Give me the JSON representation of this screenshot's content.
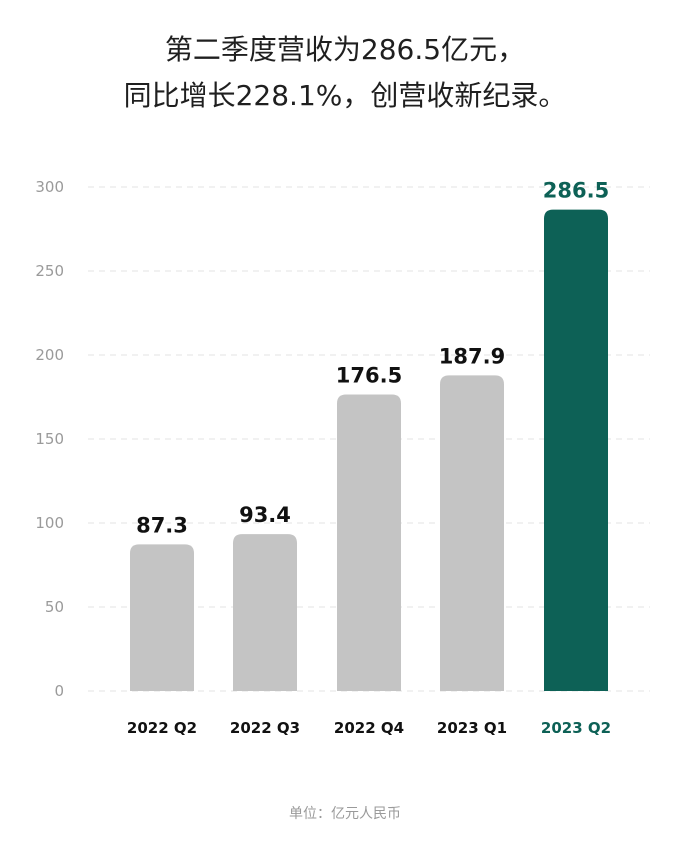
{
  "title_lines": [
    "第二季度营收为286.5亿元，",
    "同比增长228.1%，创营收新纪录。"
  ],
  "unit_note": "单位：亿元人民币",
  "colors": {
    "bar_default": "#c4c4c4",
    "bar_highlight": "#0d6156",
    "label_default": "#111111",
    "label_highlight": "#0d6156",
    "grid": "#e3e3e3",
    "tick": "#9a9a9a"
  },
  "chart_data": {
    "type": "bar",
    "categories": [
      "2022 Q2",
      "2022 Q3",
      "2022 Q4",
      "2023 Q1",
      "2023 Q2"
    ],
    "values": [
      87.3,
      93.4,
      176.5,
      187.9,
      286.5
    ],
    "value_labels": [
      "87.3",
      "93.4",
      "176.5",
      "187.9",
      "286.5"
    ],
    "highlight_index": 4,
    "ylim": [
      0,
      300
    ],
    "yticks": [
      0,
      50,
      100,
      150,
      200,
      250,
      300
    ],
    "grid": true,
    "legend": "none"
  }
}
